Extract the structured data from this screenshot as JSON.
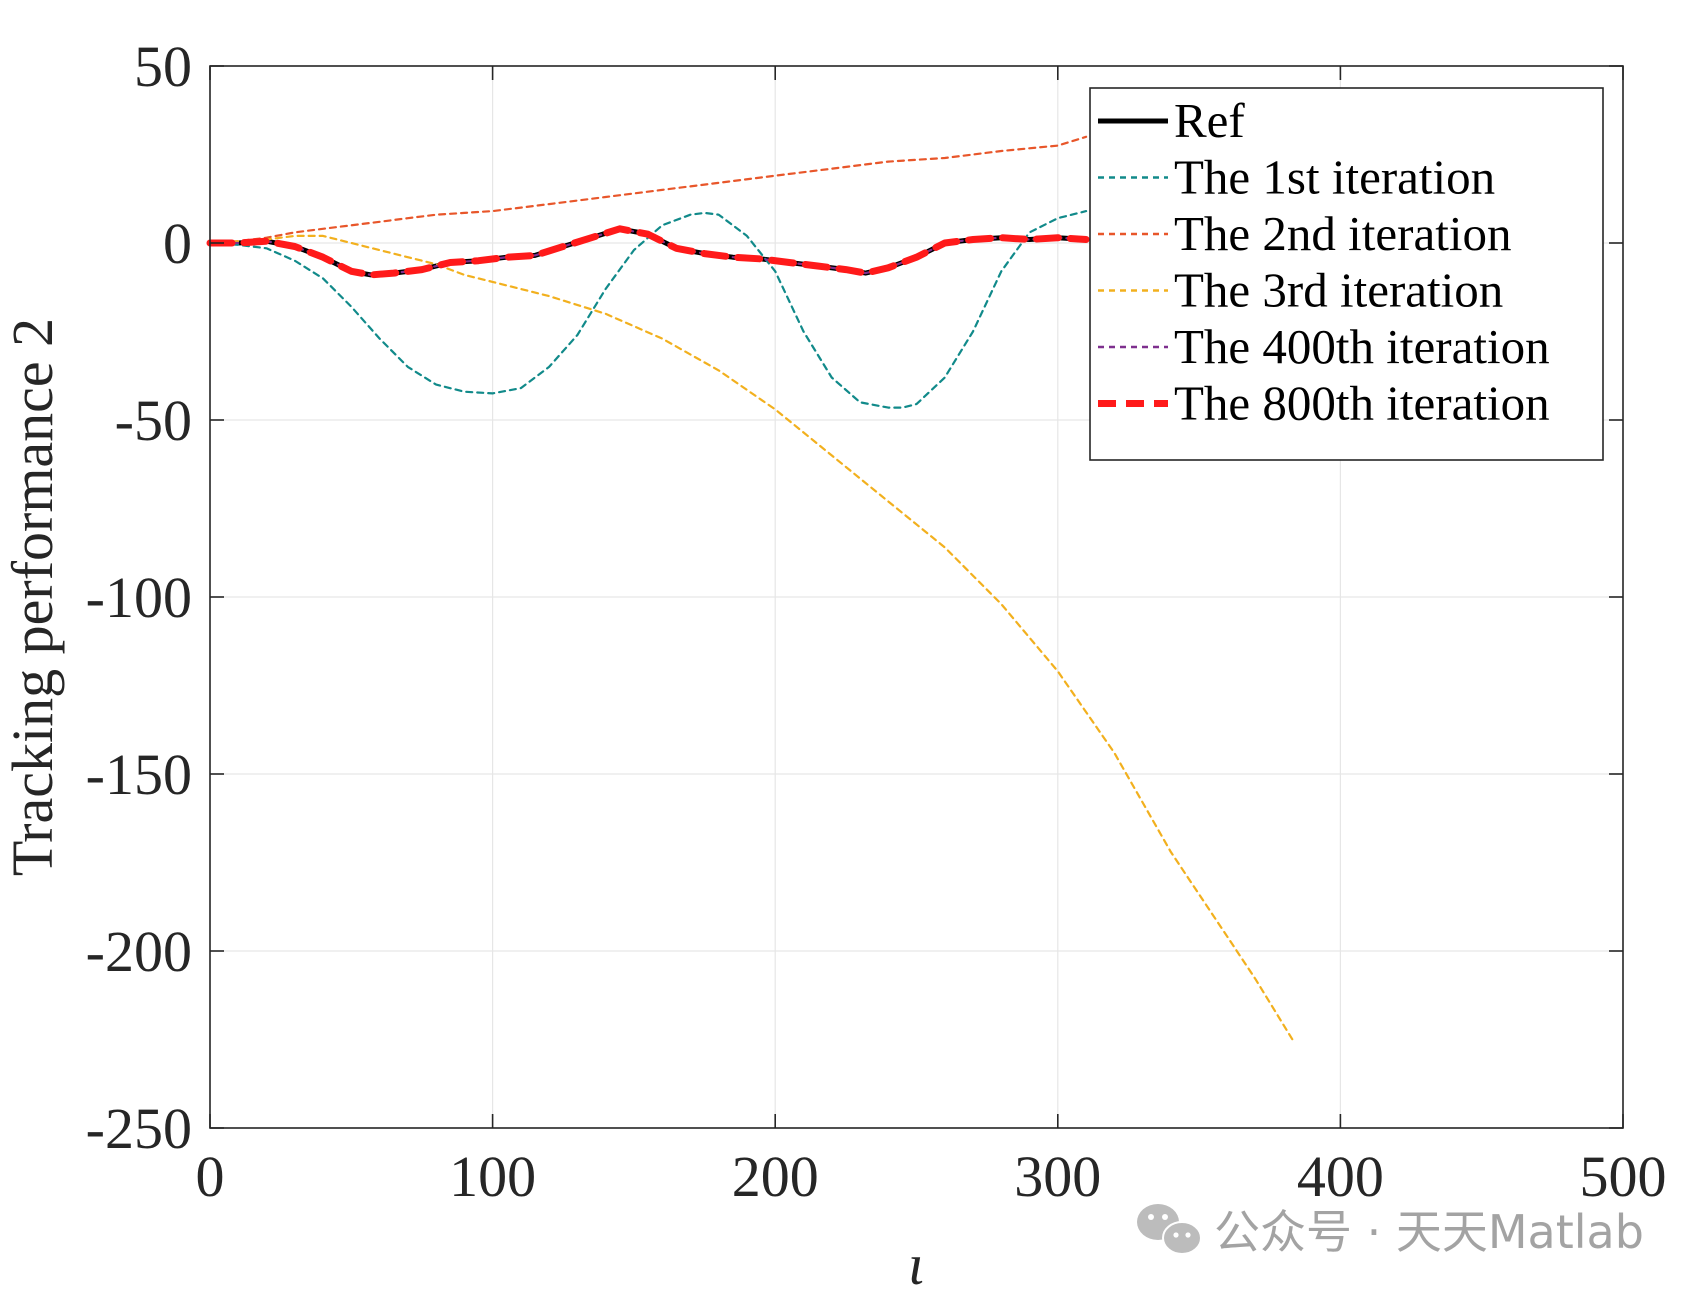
{
  "chart_data": {
    "type": "line",
    "title": "",
    "xlabel": "ι",
    "ylabel": "Tracking performance 2",
    "xlim": [
      0,
      500
    ],
    "ylim": [
      -250,
      50
    ],
    "xticks": [
      0,
      100,
      200,
      300,
      400,
      500
    ],
    "yticks": [
      50,
      0,
      -50,
      -100,
      -150,
      -200,
      -250
    ],
    "grid": true,
    "legend_position": "top-right",
    "series": [
      {
        "name": "Ref",
        "color": "#000000",
        "style": "solid",
        "x": [
          0,
          10,
          20,
          30,
          40,
          50,
          57,
          65,
          75,
          85,
          95,
          105,
          115,
          125,
          135,
          145,
          155,
          165,
          175,
          185,
          195,
          205,
          215,
          225,
          232,
          240,
          250,
          260,
          270,
          280,
          290,
          300,
          310
        ],
        "y": [
          0,
          0,
          0.5,
          -1,
          -4,
          -8,
          -9,
          -8.5,
          -7.5,
          -5.5,
          -5,
          -4,
          -3.5,
          -1,
          1.5,
          4,
          2.5,
          -1.5,
          -3,
          -4,
          -4.5,
          -5.5,
          -6.5,
          -7.5,
          -8.5,
          -7,
          -4,
          0,
          1,
          1.5,
          1,
          1.5,
          1
        ]
      },
      {
        "name": "The 1st iteration",
        "color": "#118a8a",
        "style": "dotted",
        "x": [
          0,
          10,
          20,
          30,
          40,
          50,
          60,
          70,
          80,
          90,
          100,
          110,
          120,
          130,
          140,
          150,
          160,
          170,
          175,
          180,
          190,
          200,
          210,
          220,
          230,
          240,
          245,
          250,
          260,
          270,
          280,
          290,
          300,
          310
        ],
        "y": [
          0,
          -0.5,
          -1.5,
          -5,
          -10,
          -18,
          -27,
          -35,
          -40,
          -42,
          -42.5,
          -41,
          -35,
          -26,
          -13,
          -2,
          5,
          8,
          8.5,
          8,
          2,
          -8,
          -25,
          -38,
          -45,
          -46.5,
          -46.5,
          -45.5,
          -38,
          -25,
          -8,
          3,
          7,
          9
        ]
      },
      {
        "name": "The 2nd iteration",
        "color": "#e8562a",
        "style": "dotted",
        "x": [
          0,
          10,
          20,
          30,
          40,
          50,
          60,
          70,
          80,
          90,
          100,
          120,
          140,
          160,
          180,
          200,
          220,
          240,
          260,
          280,
          300,
          310
        ],
        "y": [
          0,
          0.5,
          1.5,
          3,
          4,
          5,
          6,
          7,
          8,
          8.5,
          9,
          11,
          13,
          15,
          17,
          19,
          21,
          23,
          24,
          26,
          27.5,
          30
        ]
      },
      {
        "name": "The 3rd iteration",
        "color": "#f2b01e",
        "style": "dotted",
        "x": [
          0,
          10,
          20,
          30,
          40,
          50,
          60,
          70,
          80,
          90,
          100,
          120,
          140,
          160,
          180,
          200,
          220,
          240,
          260,
          280,
          300,
          320,
          340,
          360,
          370,
          383
        ],
        "y": [
          0,
          0.5,
          1,
          2,
          2,
          0,
          -2,
          -4,
          -6,
          -9,
          -11,
          -15,
          -20,
          -27,
          -36,
          -47,
          -60,
          -73,
          -86,
          -102,
          -121,
          -144,
          -172,
          -196,
          -208,
          -225
        ]
      },
      {
        "name": "The 400th iteration",
        "color": "#7e2f8e",
        "style": "dotted",
        "x": [
          0,
          10,
          20,
          30,
          40,
          50,
          57,
          65,
          75,
          85,
          95,
          105,
          115,
          125,
          135,
          145,
          155,
          165,
          175,
          185,
          195,
          205,
          215,
          225,
          232,
          240,
          250,
          260,
          270,
          280,
          290,
          300,
          310
        ],
        "y": [
          0,
          0,
          0.5,
          -1,
          -4,
          -8,
          -9,
          -8.5,
          -7.5,
          -5.5,
          -5,
          -4,
          -3.5,
          -1,
          1.5,
          4,
          2.5,
          -1.5,
          -3,
          -4,
          -4.5,
          -5.5,
          -6.5,
          -7.5,
          -8.5,
          -7,
          -4,
          0,
          1,
          1.5,
          1,
          1.5,
          1
        ]
      },
      {
        "name": "The 800th iteration",
        "color": "#ff1a1a",
        "style": "dashed",
        "x": [
          0,
          10,
          20,
          30,
          40,
          50,
          57,
          65,
          75,
          85,
          95,
          105,
          115,
          125,
          135,
          145,
          155,
          165,
          175,
          185,
          195,
          205,
          215,
          225,
          232,
          240,
          250,
          260,
          270,
          280,
          290,
          300,
          310
        ],
        "y": [
          0,
          0,
          0.5,
          -1,
          -4,
          -8,
          -9,
          -8.5,
          -7.5,
          -5.5,
          -5,
          -4,
          -3.5,
          -1,
          1.5,
          4,
          2.5,
          -1.5,
          -3,
          -4,
          -4.5,
          -5.5,
          -6.5,
          -7.5,
          -8.5,
          -7,
          -4,
          0,
          1,
          1.5,
          1,
          1.5,
          1
        ]
      }
    ]
  },
  "watermark": {
    "text": "公众号 · 天天Matlab",
    "icon": "wechat-icon"
  }
}
